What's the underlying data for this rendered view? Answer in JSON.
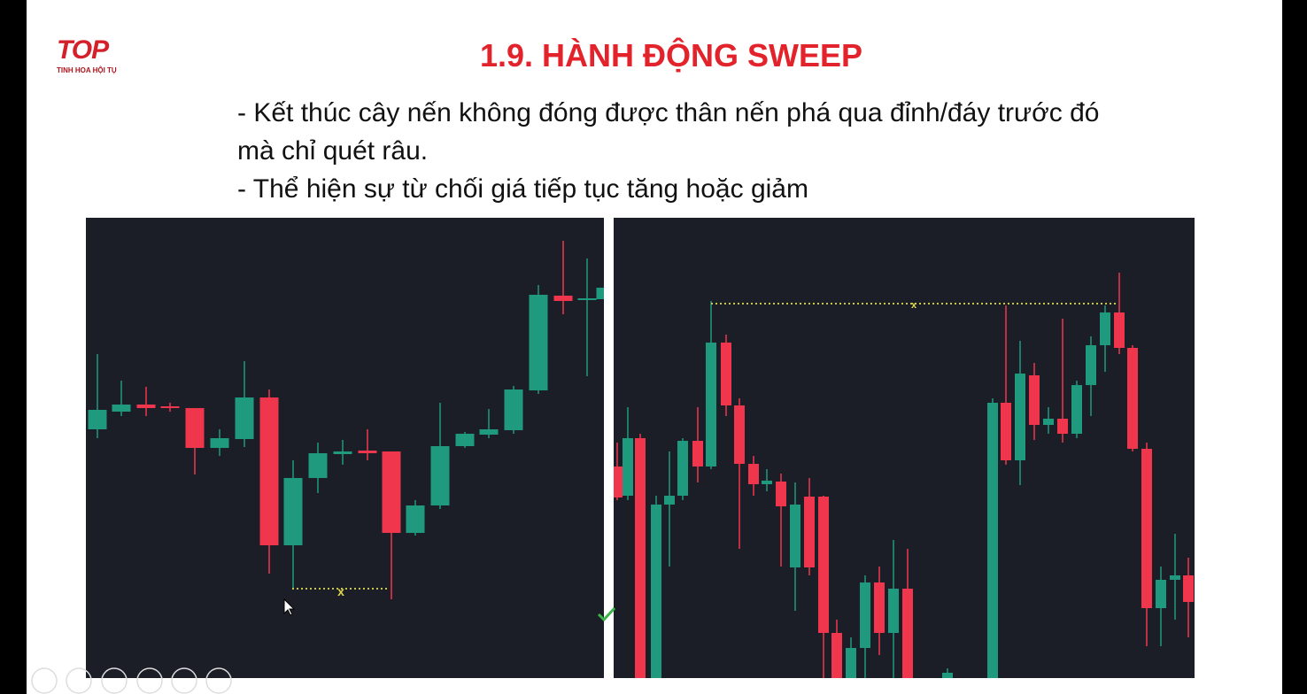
{
  "header": {
    "logo": {
      "mark": "TOP",
      "tagline": "TINH HOA HỘI TỤ"
    },
    "title": "1.9. HÀNH ĐỘNG SWEEP"
  },
  "bullets": [
    "- Kết thúc cây nến không đóng được thân nến phá qua đỉnh/đáy trước đó mà chỉ quét râu.",
    "- Thể hiện sự từ chối giá tiếp tục tăng hoặc giảm"
  ],
  "panels": [
    {
      "marker": "x"
    },
    {
      "marker": "x"
    }
  ]
}
